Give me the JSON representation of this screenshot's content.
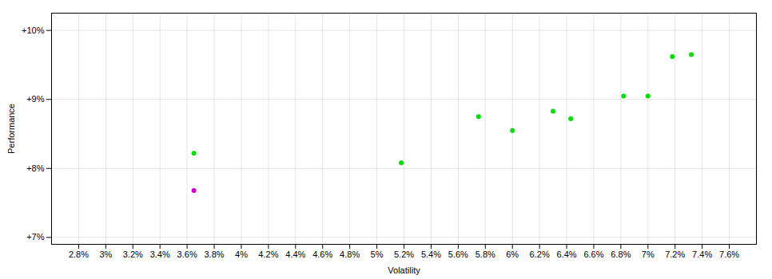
{
  "chart_data": {
    "type": "scatter",
    "xlabel": "Volatility",
    "ylabel": "Performance",
    "xlim": [
      0.026,
      0.078
    ],
    "ylim": [
      0.069,
      0.1025
    ],
    "xticks": [
      {
        "value": 0.028,
        "label": "2.8%"
      },
      {
        "value": 0.03,
        "label": "3%"
      },
      {
        "value": 0.032,
        "label": "3.2%"
      },
      {
        "value": 0.034,
        "label": "3.4%"
      },
      {
        "value": 0.036,
        "label": "3.6%"
      },
      {
        "value": 0.038,
        "label": "3.8%"
      },
      {
        "value": 0.04,
        "label": "4%"
      },
      {
        "value": 0.042,
        "label": "4.2%"
      },
      {
        "value": 0.044,
        "label": "4.4%"
      },
      {
        "value": 0.046,
        "label": "4.6%"
      },
      {
        "value": 0.048,
        "label": "4.8%"
      },
      {
        "value": 0.05,
        "label": "5%"
      },
      {
        "value": 0.052,
        "label": "5.2%"
      },
      {
        "value": 0.054,
        "label": "5.4%"
      },
      {
        "value": 0.056,
        "label": "5.6%"
      },
      {
        "value": 0.058,
        "label": "5.8%"
      },
      {
        "value": 0.06,
        "label": "6%"
      },
      {
        "value": 0.062,
        "label": "6.2%"
      },
      {
        "value": 0.064,
        "label": "6.4%"
      },
      {
        "value": 0.066,
        "label": "6.6%"
      },
      {
        "value": 0.068,
        "label": "6.8%"
      },
      {
        "value": 0.07,
        "label": "7%"
      },
      {
        "value": 0.072,
        "label": "7.2%"
      },
      {
        "value": 0.074,
        "label": "7.4%"
      },
      {
        "value": 0.076,
        "label": "7.6%"
      }
    ],
    "yticks": [
      {
        "value": 0.07,
        "label": "+7%"
      },
      {
        "value": 0.08,
        "label": "+8%"
      },
      {
        "value": 0.09,
        "label": "+9%"
      },
      {
        "value": 0.1,
        "label": "+10%"
      }
    ],
    "grid": true,
    "series": [
      {
        "color": "#00dd00",
        "x": [
          0.0365,
          0.0518,
          0.0575,
          0.06,
          0.063,
          0.0643,
          0.0682,
          0.07,
          0.0718,
          0.0732
        ],
        "values": [
          0.0822,
          0.0808,
          0.0875,
          0.0855,
          0.0883,
          0.0872,
          0.0905,
          0.0905,
          0.0962,
          0.0965
        ]
      },
      {
        "color": "#cc00cc",
        "x": [
          0.0365
        ],
        "values": [
          0.0768
        ]
      }
    ]
  }
}
